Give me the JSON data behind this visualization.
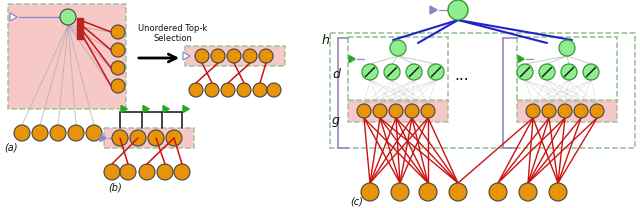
{
  "fig_width": 6.4,
  "fig_height": 2.08,
  "dpi": 100,
  "bg_color": "#ffffff",
  "node_orange": "#E8940A",
  "node_green_light": "#90EE90",
  "pink_bg": "#F5BFBF",
  "pink_bg_alpha": 0.6,
  "dashed_box_color": "#90C090",
  "arrow_purple": "#8888CC",
  "arrow_green": "#22AA22",
  "line_blue": "#2222CC",
  "line_red": "#CC1111",
  "line_gray": "#AAAAAA",
  "line_black": "#111111",
  "text_color": "#111111",
  "labels": {
    "a": "(a)",
    "b": "(b)",
    "c": "(c)",
    "title": "Unordered Top-k\nSelection",
    "h": "h",
    "d": "d",
    "g": "g",
    "dots": "..."
  }
}
